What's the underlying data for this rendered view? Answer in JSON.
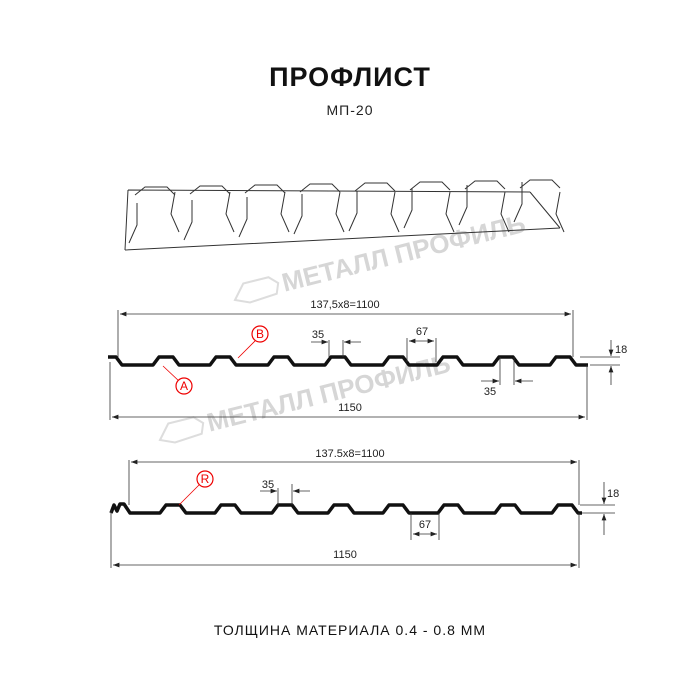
{
  "header": {
    "title": "ПРОФЛИСТ",
    "subtitle": "МП-20"
  },
  "watermark": {
    "text": "МЕТАЛЛ ПРОФИЛЬ"
  },
  "profile_top": {
    "pitch_label": "137,5x8=1100",
    "width_label": "1150",
    "rib_top_label": "35",
    "rib_bottom_label": "35",
    "valley_label": "67",
    "height_label": "18",
    "marker_a": "A",
    "marker_b": "B"
  },
  "profile_bottom": {
    "pitch_label": "137.5x8=1100",
    "width_label": "1150",
    "rib_top_label": "35",
    "valley_label": "67",
    "height_label": "18",
    "marker_r": "R"
  },
  "footer": {
    "thickness_label": "ТОЛЩИНА МАТЕРИАЛА 0.4 - 0.8 ММ"
  },
  "colors": {
    "line": "#111111",
    "marker": "#e00000",
    "watermark": "#d6d6d6"
  }
}
